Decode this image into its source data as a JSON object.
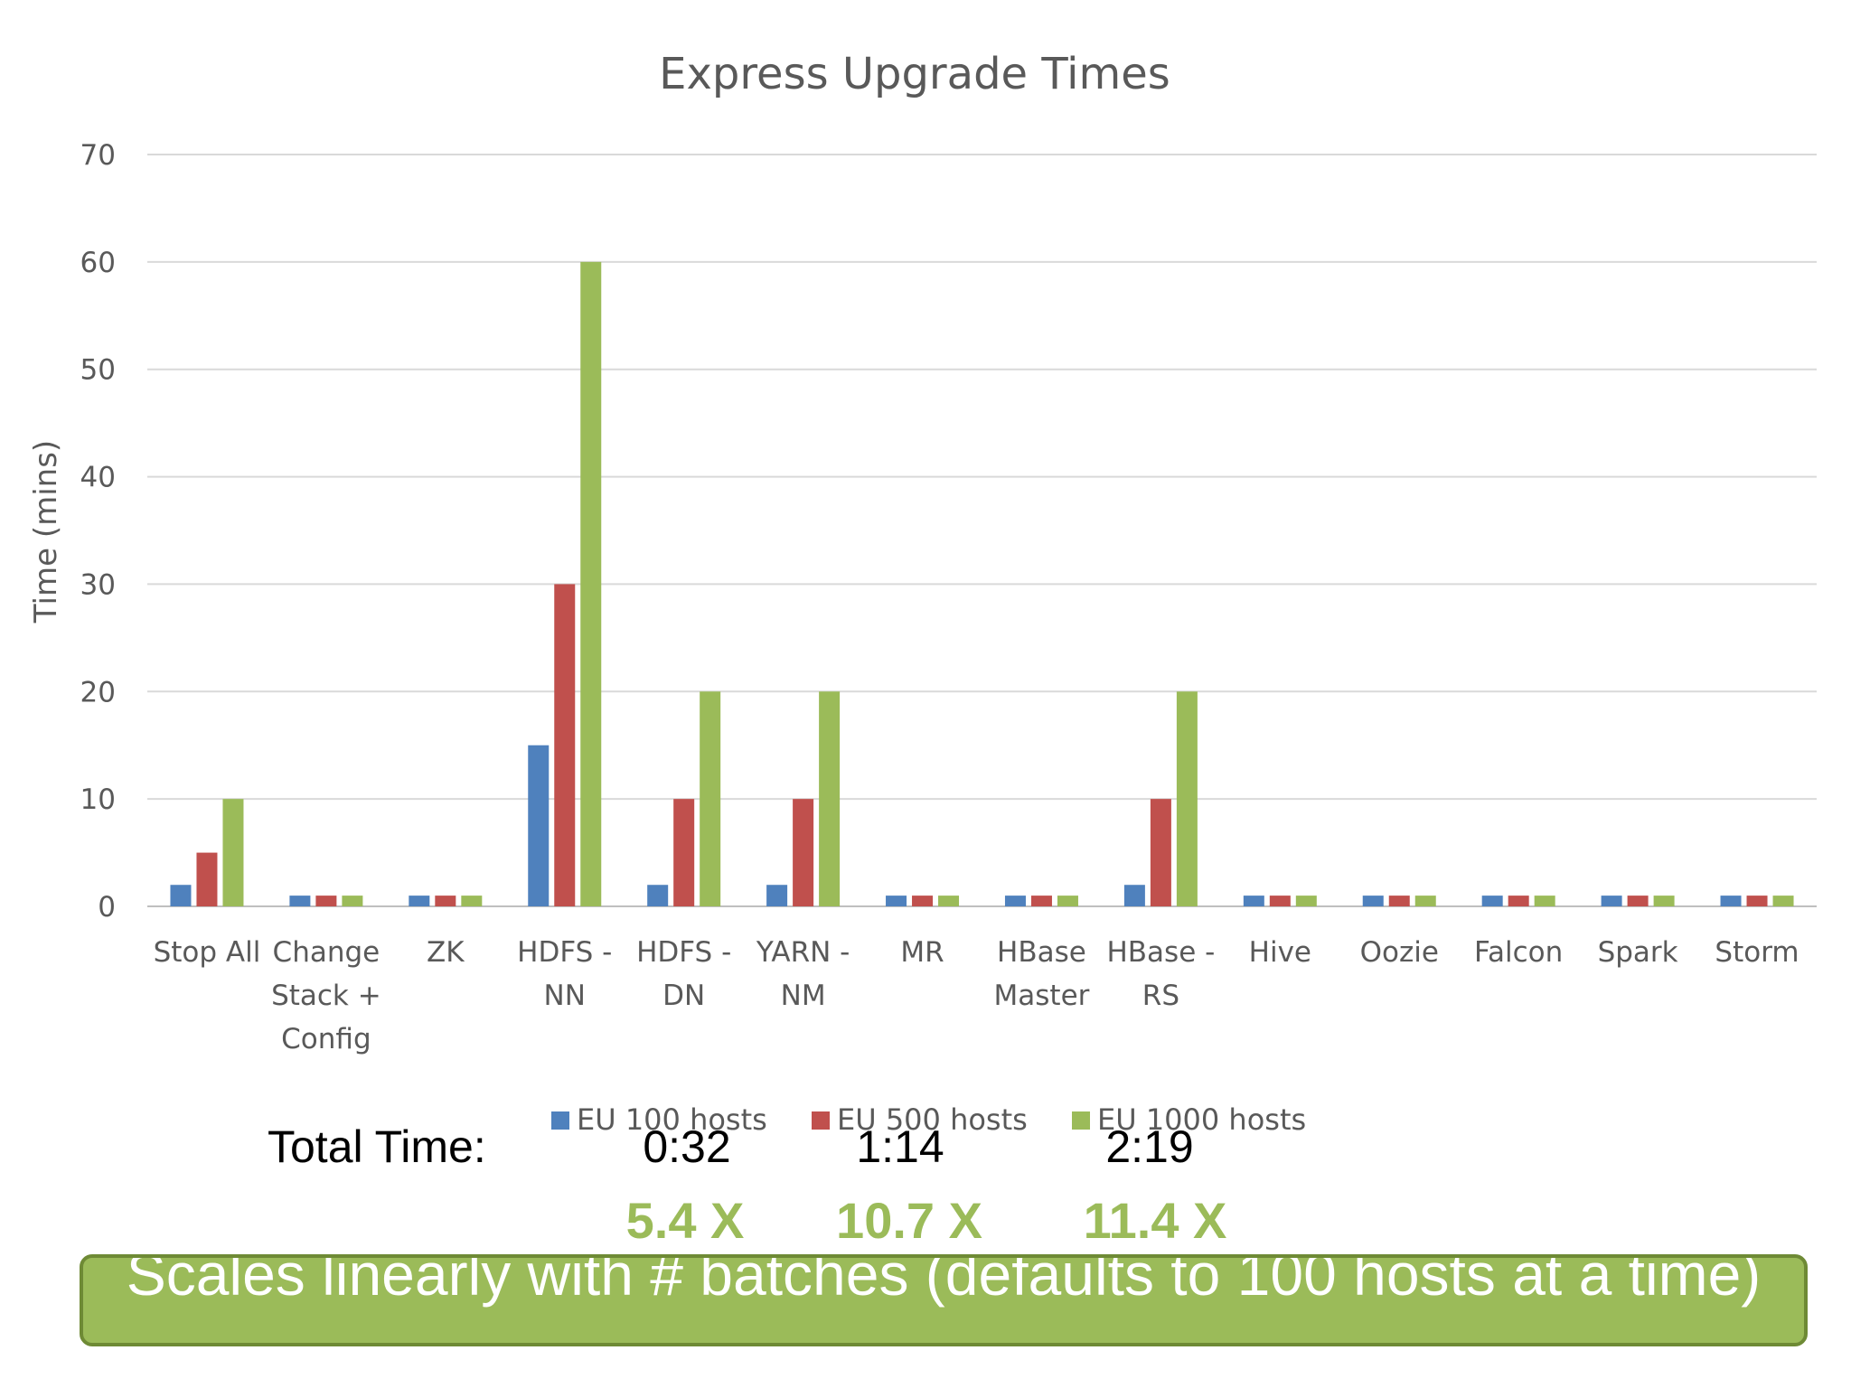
{
  "chart_data": {
    "type": "bar",
    "title": "Express Upgrade Times",
    "ylabel": "Time (mins)",
    "xlabel": "",
    "ylim": [
      0,
      70
    ],
    "yticks": [
      0,
      10,
      20,
      30,
      40,
      50,
      60,
      70
    ],
    "grid": true,
    "legend_position": "bottom",
    "categories": [
      [
        "Stop All"
      ],
      [
        "Change",
        "Stack +",
        "Config"
      ],
      [
        "ZK"
      ],
      [
        "HDFS -",
        "NN"
      ],
      [
        "HDFS -",
        "DN"
      ],
      [
        "YARN -",
        "NM"
      ],
      [
        "MR"
      ],
      [
        "HBase",
        "Master"
      ],
      [
        "HBase -",
        "RS"
      ],
      [
        "Hive"
      ],
      [
        "Oozie"
      ],
      [
        "Falcon"
      ],
      [
        "Spark"
      ],
      [
        "Storm"
      ]
    ],
    "series": [
      {
        "name": "EU 100 hosts",
        "color": "#4f81bd",
        "values": [
          2,
          1,
          1,
          15,
          2,
          2,
          1,
          1,
          2,
          1,
          1,
          1,
          1,
          1
        ]
      },
      {
        "name": "EU 500 hosts",
        "color": "#c0504d",
        "values": [
          5,
          1,
          1,
          30,
          10,
          10,
          1,
          1,
          10,
          1,
          1,
          1,
          1,
          1
        ]
      },
      {
        "name": "EU 1000 hosts",
        "color": "#9bbb59",
        "values": [
          10,
          1,
          1,
          60,
          20,
          20,
          1,
          1,
          20,
          1,
          1,
          1,
          1,
          1
        ]
      }
    ]
  },
  "totals": {
    "label": "Total Time:",
    "values": [
      "0:32",
      "1:14",
      "2:19"
    ]
  },
  "speedups": [
    "5.4 X",
    "10.7 X",
    "11.4 X"
  ],
  "callout": {
    "text": "Scales linearly with # batches (defaults to 100 hosts at a time)"
  }
}
